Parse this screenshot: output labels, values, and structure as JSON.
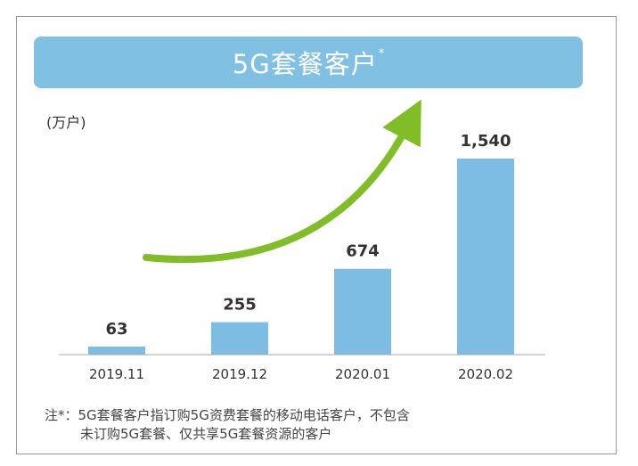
{
  "header": {
    "title": "5G套餐客户",
    "title_mark": "*"
  },
  "chart_data": {
    "type": "bar",
    "categories": [
      "2019.11",
      "2019.12",
      "2020.01",
      "2020.02"
    ],
    "values": [
      63,
      255,
      674,
      1540
    ],
    "value_labels": [
      "63",
      "255",
      "674",
      "1,540"
    ],
    "unit_label": "(万户)",
    "ylim": [
      0,
      1540
    ],
    "grid": false,
    "legend": "none",
    "bar_color": "#7dbde3",
    "arrow_color": "#80bd26"
  },
  "footnote": {
    "line1": "注*：5G套餐客户指订购5G资费套餐的移动电话客户，不包含",
    "line2": "未订购5G套餐、仅共享5G套餐资源的客户"
  }
}
